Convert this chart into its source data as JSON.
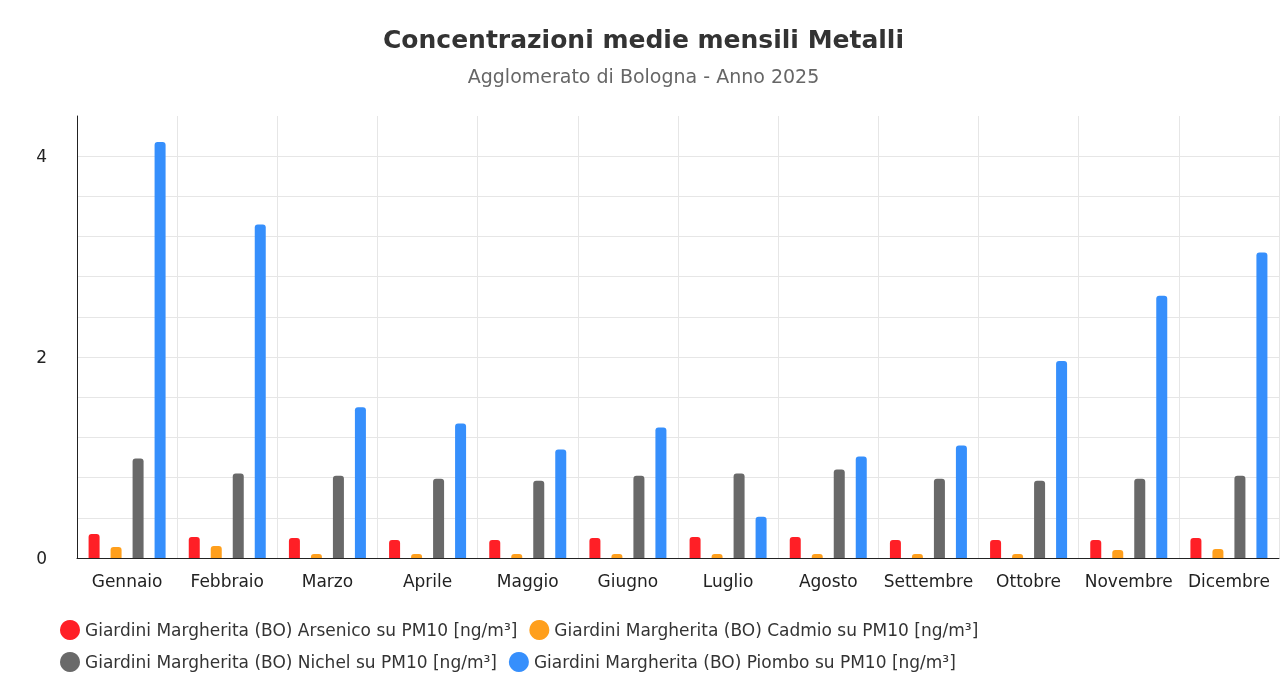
{
  "chart_data": {
    "type": "bar",
    "title": "Concentrazioni medie mensili Metalli",
    "subtitle": "Agglomerato di Bologna - Anno 2025",
    "categories": [
      "Gennaio",
      "Febbraio",
      "Marzo",
      "Aprile",
      "Maggio",
      "Giugno",
      "Luglio",
      "Agosto",
      "Settembre",
      "Ottobre",
      "Novembre",
      "Dicembre"
    ],
    "series": [
      {
        "name": "Giardini Margherita (BO) Arsenico su PM10 [ng/m³]",
        "color": "#ff1f26",
        "values": [
          0.24,
          0.21,
          0.2,
          0.18,
          0.18,
          0.2,
          0.21,
          0.21,
          0.18,
          0.18,
          0.18,
          0.2
        ]
      },
      {
        "name": "Giardini Margherita (BO) Cadmio su PM10 [ng/m³]",
        "color": "#ff9f1c",
        "values": [
          0.11,
          0.12,
          0.04,
          0.04,
          0.04,
          0.04,
          0.04,
          0.04,
          0.04,
          0.04,
          0.08,
          0.09
        ]
      },
      {
        "name": "Giardini Margherita (BO) Nichel su PM10 [ng/m³]",
        "color": "#696969",
        "values": [
          0.99,
          0.84,
          0.82,
          0.79,
          0.77,
          0.82,
          0.84,
          0.88,
          0.79,
          0.77,
          0.79,
          0.82
        ]
      },
      {
        "name": "Giardini Margherita (BO) Piombo su PM10 [ng/m³]",
        "color": "#368ffc",
        "values": [
          4.14,
          3.32,
          1.5,
          1.34,
          1.08,
          1.3,
          0.41,
          1.01,
          1.12,
          1.96,
          2.61,
          3.04
        ]
      }
    ],
    "ylim": [
      0,
      4.4
    ],
    "yticks": [
      0,
      {
        "value": 0.4,
        "label": null
      },
      {
        "value": 0.8,
        "label": null
      },
      {
        "value": 1.2,
        "label": null
      },
      {
        "value": 1.6,
        "label": null
      },
      2,
      {
        "value": 2.4,
        "label": null
      },
      {
        "value": 2.8,
        "label": null
      },
      {
        "value": 3.2,
        "label": null
      },
      {
        "value": 3.6,
        "label": null
      },
      4
    ],
    "grid": true,
    "legend": "bottom",
    "marker": "circle"
  }
}
